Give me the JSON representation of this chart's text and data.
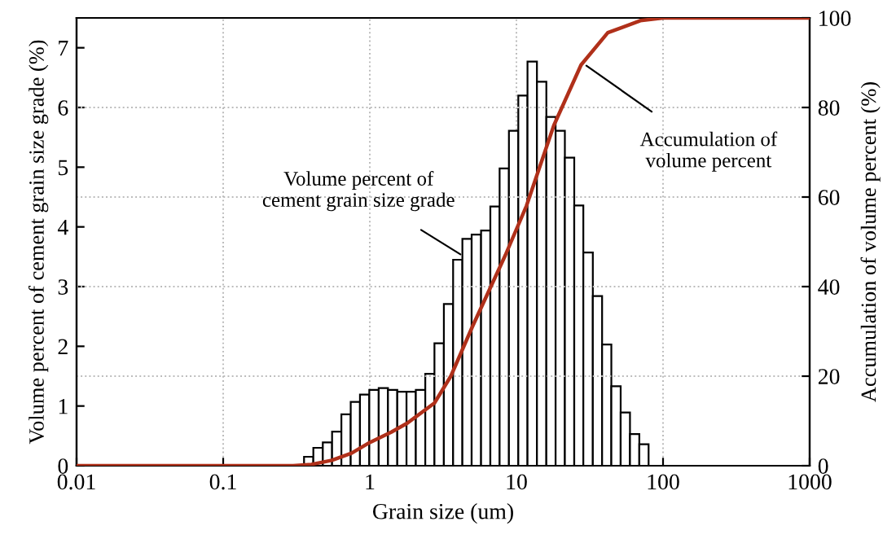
{
  "chart_data": {
    "type": "histogram",
    "xlabel": "Grain size (um)",
    "ylabel": "Volume percent of cement grain size grade (%)",
    "y2label": "Accumulation of volume percent (%)",
    "log": "x",
    "grid": true,
    "xlim": [
      0.01,
      1000
    ],
    "xticks": [
      0.01,
      0.1,
      1,
      10,
      100,
      1000
    ],
    "ylim": [
      0,
      7.5
    ],
    "yticks": [
      0,
      1,
      2,
      3,
      4,
      5,
      6,
      7
    ],
    "y2lim": [
      0,
      100
    ],
    "y2ticks": [
      0,
      20,
      40,
      60,
      80,
      100
    ],
    "series": [
      {
        "color": "#ffffff",
        "bins": [
          0.356,
          0.412,
          0.478,
          0.553,
          0.64,
          0.741,
          0.857,
          0.992,
          1.15,
          1.33,
          1.54,
          1.78,
          2.06,
          2.39,
          2.76,
          3.2,
          3.7,
          4.28,
          4.95,
          5.74,
          6.64,
          7.68,
          8.89,
          10.3,
          11.9,
          13.8,
          16.0,
          18.5,
          21.4,
          24.8,
          28.6,
          33.2,
          38.4,
          44.4,
          51.4,
          59.5,
          68.9,
          79.7
        ],
        "values": [
          0.15,
          0.3,
          0.39,
          0.57,
          0.86,
          1.07,
          1.19,
          1.27,
          1.3,
          1.27,
          1.24,
          1.24,
          1.27,
          1.54,
          2.05,
          2.71,
          3.45,
          3.8,
          3.87,
          3.94,
          4.34,
          4.98,
          5.61,
          6.2,
          6.77,
          6.43,
          5.84,
          5.61,
          5.16,
          4.36,
          3.57,
          2.84,
          2.03,
          1.33,
          0.89,
          0.53,
          0.36
        ]
      },
      {
        "type": "line",
        "axis": "y2",
        "color": "#b0301a",
        "line_style": "solid",
        "marker": "none",
        "x": [
          0.01,
          0.3,
          0.4,
          0.55,
          0.75,
          1.0,
          1.4,
          1.8,
          2.76,
          3.57,
          5.0,
          8.4,
          11.7,
          18,
          27.6,
          42,
          70,
          100,
          1000
        ],
        "values": [
          0,
          0,
          0.3,
          1.2,
          2.8,
          5.2,
          7.5,
          9.5,
          14,
          20,
          31,
          47,
          58,
          76,
          89.5,
          96.7,
          99.4,
          100,
          100
        ]
      }
    ],
    "annotations": [
      {
        "text": "Volume percent of\ncement grain size grade",
        "x": 4.15,
        "y": 3.54
      },
      {
        "text": "Accumulation of\nvolume percent",
        "x": 30,
        "y": 6.7
      }
    ]
  }
}
